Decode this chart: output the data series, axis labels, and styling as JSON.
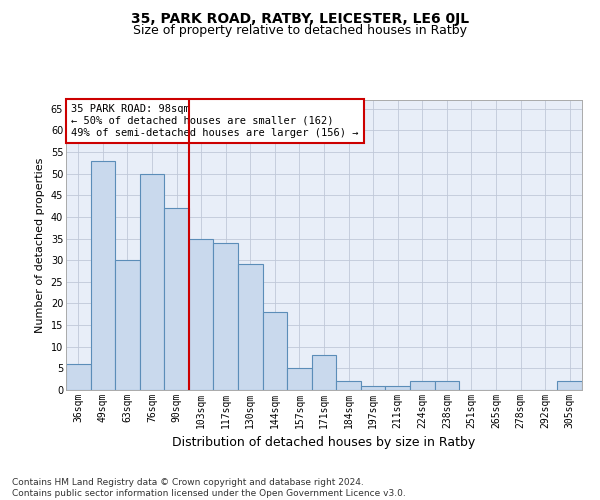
{
  "title_main": "35, PARK ROAD, RATBY, LEICESTER, LE6 0JL",
  "title_sub": "Size of property relative to detached houses in Ratby",
  "xlabel": "Distribution of detached houses by size in Ratby",
  "ylabel": "Number of detached properties",
  "categories": [
    "36sqm",
    "49sqm",
    "63sqm",
    "76sqm",
    "90sqm",
    "103sqm",
    "117sqm",
    "130sqm",
    "144sqm",
    "157sqm",
    "171sqm",
    "184sqm",
    "197sqm",
    "211sqm",
    "224sqm",
    "238sqm",
    "251sqm",
    "265sqm",
    "278sqm",
    "292sqm",
    "305sqm"
  ],
  "values": [
    6,
    53,
    30,
    50,
    42,
    35,
    34,
    29,
    18,
    5,
    8,
    2,
    1,
    1,
    2,
    2,
    0,
    0,
    0,
    0,
    2
  ],
  "bar_color": "#c9d9ed",
  "bar_edge_color": "#5b8db8",
  "bar_edge_width": 0.8,
  "vline_pos": 4.5,
  "vline_color": "#cc0000",
  "annotation_text": "35 PARK ROAD: 98sqm\n← 50% of detached houses are smaller (162)\n49% of semi-detached houses are larger (156) →",
  "annotation_box_color": "white",
  "annotation_box_edge": "#cc0000",
  "ylim": [
    0,
    67
  ],
  "yticks": [
    0,
    5,
    10,
    15,
    20,
    25,
    30,
    35,
    40,
    45,
    50,
    55,
    60,
    65
  ],
  "grid_color": "#c0c8d8",
  "bg_color": "#e8eef8",
  "footnote": "Contains HM Land Registry data © Crown copyright and database right 2024.\nContains public sector information licensed under the Open Government Licence v3.0.",
  "title_fontsize": 10,
  "subtitle_fontsize": 9,
  "xlabel_fontsize": 9,
  "ylabel_fontsize": 8,
  "tick_fontsize": 7,
  "annot_fontsize": 7.5,
  "footnote_fontsize": 6.5
}
